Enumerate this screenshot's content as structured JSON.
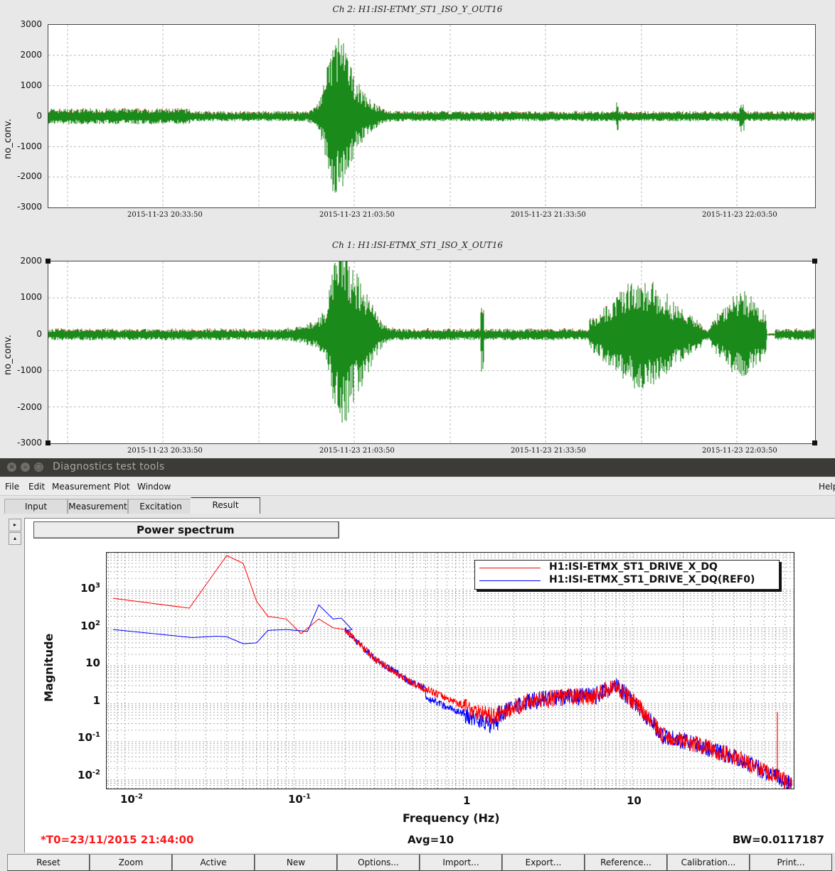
{
  "timeseries": [
    {
      "title": "Ch 2: H1:ISI-ETMY_ST1_ISO_Y_OUT16",
      "ylabel": "no_conv.",
      "yticks": [
        "3000",
        "2000",
        "1000",
        "0",
        "-1000",
        "-2000",
        "-3000"
      ],
      "xticks": [
        "2015-11-23 20:33:50",
        "2015-11-23 21:03:50",
        "2015-11-23 21:33:50",
        "2015-11-23 22:03:50"
      ]
    },
    {
      "title": "Ch 1: H1:ISI-ETMX_ST1_ISO_X_OUT16",
      "ylabel": "no_conv.",
      "yticks": [
        "2000",
        "1000",
        "0",
        "-1000",
        "-2000",
        "-3000"
      ],
      "xticks": [
        "2015-11-23 20:33:50",
        "2015-11-23 21:03:50",
        "2015-11-23 21:33:50",
        "2015-11-23 22:03:50"
      ]
    }
  ],
  "window": {
    "title": "Diagnostics test tools",
    "close_glyph": "×",
    "min_glyph": "–",
    "max_glyph": "□"
  },
  "menu": [
    "File",
    "Edit",
    "Measurement",
    "Plot",
    "Window",
    "Help"
  ],
  "tabs": [
    "Input",
    "Measurement",
    "Excitation",
    "Result"
  ],
  "side_buttons": [
    "▸",
    "▴"
  ],
  "result": {
    "plot_label": "Power spectrum",
    "ylabel": "Magnitude",
    "xlabel": "Frequency (Hz)",
    "yticks": [
      {
        "base": "10",
        "exp": "3"
      },
      {
        "base": "10",
        "exp": "2"
      },
      {
        "base": "10",
        "exp": ""
      },
      {
        "base": "1",
        "exp": ""
      },
      {
        "base": "10",
        "exp": "-1"
      },
      {
        "base": "10",
        "exp": "-2"
      }
    ],
    "xticks": [
      {
        "base": "10",
        "exp": "-2"
      },
      {
        "base": "10",
        "exp": "-1"
      },
      {
        "base": "1",
        "exp": ""
      },
      {
        "base": "10",
        "exp": ""
      }
    ],
    "legend": [
      "H1:ISI-ETMX_ST1_DRIVE_X_DQ",
      "H1:ISI-ETMX_ST1_DRIVE_X_DQ(REF0)"
    ],
    "t0": "*T0=23/11/2015 21:44:00",
    "avg": "Avg=10",
    "bw": "BW=0.0117187"
  },
  "buttons": [
    "Reset",
    "Zoom",
    "Active",
    "New",
    "Options...",
    "Import...",
    "Export...",
    "Reference...",
    "Calibration...",
    "Print..."
  ],
  "colors": {
    "trace_green": "#1a8a1a",
    "trace_red": "#e0201a",
    "spectrum_red": "#ff0000",
    "spectrum_blue": "#0000ff",
    "titlebar": "#3c3b37",
    "status_red": "#ff1a1a"
  }
}
